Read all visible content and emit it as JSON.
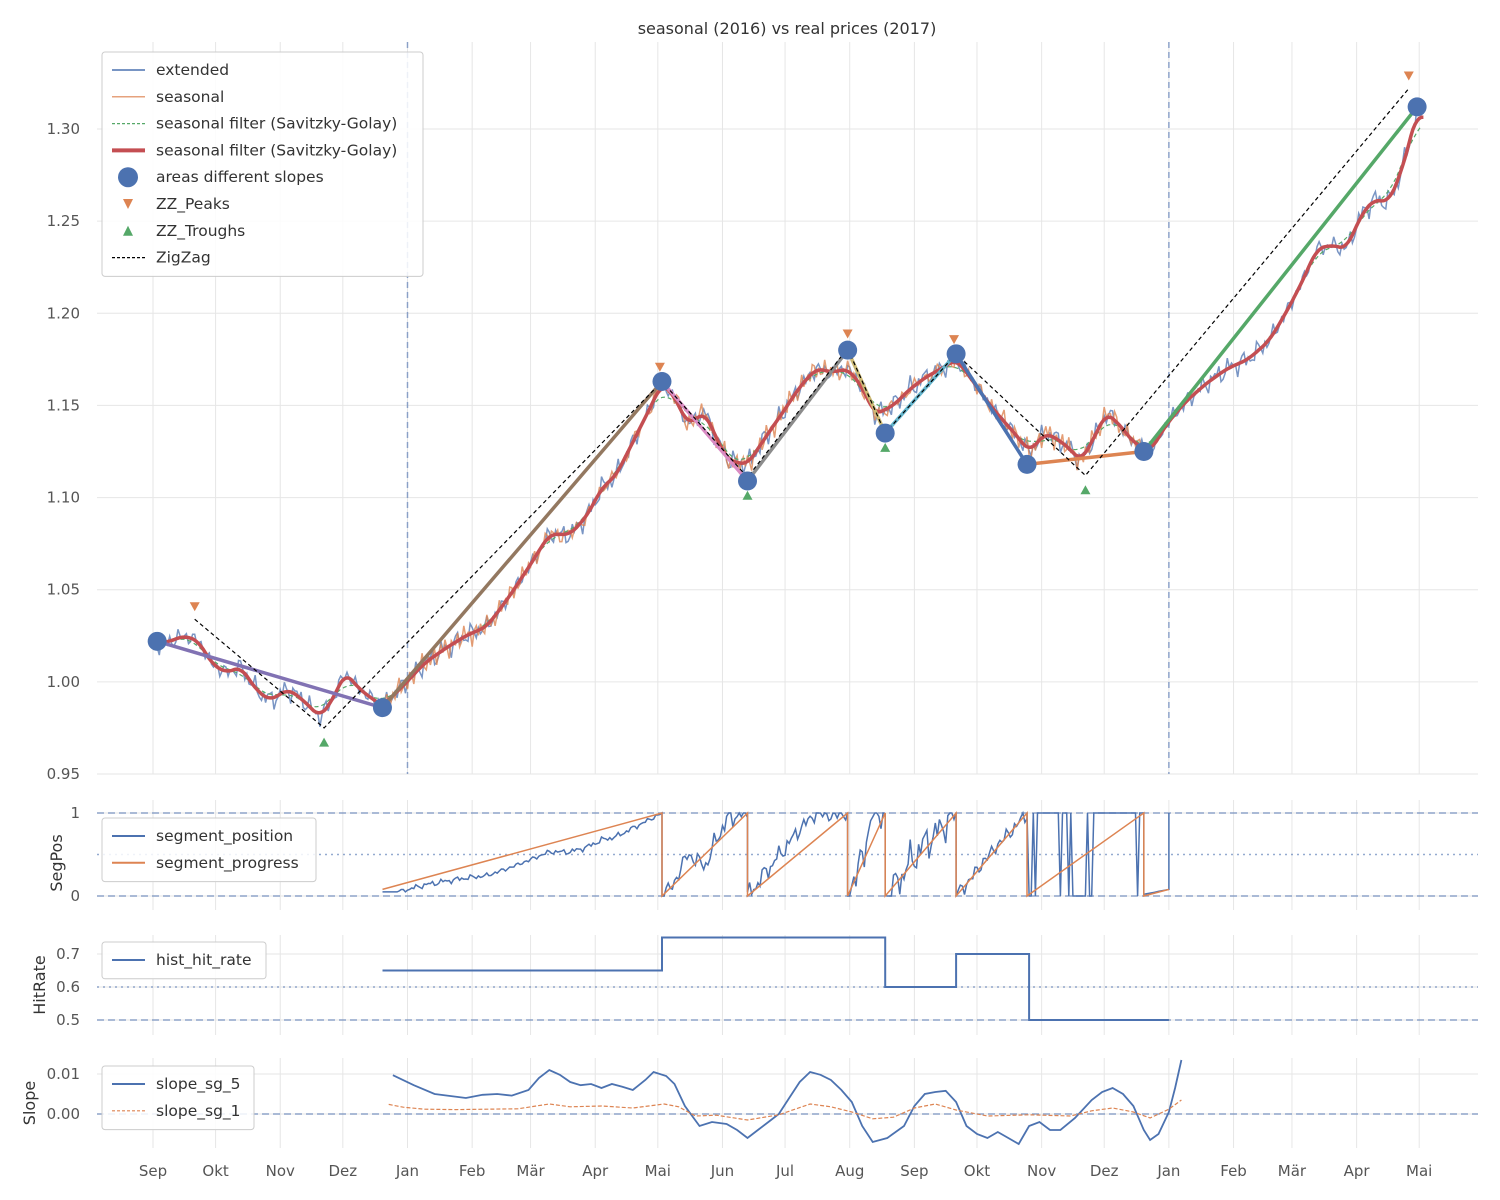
{
  "chart_data": [
    {
      "type": "line",
      "title": "seasonal (2016) vs real prices (2017)",
      "xlabel": "",
      "ylabel": "",
      "x_unit": "days since Sep 1 (2016)",
      "xlim": [
        -27,
        635
      ],
      "ylim": [
        0.95,
        1.347
      ],
      "yticks": [
        0.95,
        1.0,
        1.05,
        1.1,
        1.15,
        1.2,
        1.25,
        1.3
      ],
      "ytick_labels": [
        "0.95",
        "1.00",
        "1.05",
        "1.10",
        "1.15",
        "1.20",
        "1.25",
        "1.30"
      ],
      "vlines": [
        122,
        487
      ],
      "legend_position": "top-left",
      "legend": [
        "extended",
        "seasonal",
        "seasonal filter (Savitzky-Golay)",
        "seasonal filter (Savitzky-Golay)",
        "areas different slopes",
        "ZZ_Peaks",
        "ZZ_Troughs",
        "ZigZag"
      ],
      "smoothed": [
        [
          0,
          1.02
        ],
        [
          8,
          1.022
        ],
        [
          15,
          1.025
        ],
        [
          22,
          1.022
        ],
        [
          28,
          1.01
        ],
        [
          35,
          1.005
        ],
        [
          42,
          1.008
        ],
        [
          50,
          0.995
        ],
        [
          56,
          0.99
        ],
        [
          65,
          0.996
        ],
        [
          72,
          0.99
        ],
        [
          80,
          0.981
        ],
        [
          86,
          0.99
        ],
        [
          92,
          1.005
        ],
        [
          100,
          0.995
        ],
        [
          110,
          0.987
        ],
        [
          120,
          0.998
        ],
        [
          130,
          1.01
        ],
        [
          140,
          1.018
        ],
        [
          150,
          1.025
        ],
        [
          160,
          1.03
        ],
        [
          170,
          1.045
        ],
        [
          180,
          1.062
        ],
        [
          190,
          1.08
        ],
        [
          200,
          1.08
        ],
        [
          208,
          1.09
        ],
        [
          215,
          1.105
        ],
        [
          222,
          1.112
        ],
        [
          230,
          1.13
        ],
        [
          238,
          1.148
        ],
        [
          244,
          1.162
        ],
        [
          250,
          1.155
        ],
        [
          256,
          1.14
        ],
        [
          265,
          1.146
        ],
        [
          270,
          1.132
        ],
        [
          276,
          1.12
        ],
        [
          285,
          1.118
        ],
        [
          295,
          1.135
        ],
        [
          303,
          1.148
        ],
        [
          310,
          1.16
        ],
        [
          318,
          1.17
        ],
        [
          326,
          1.168
        ],
        [
          333,
          1.17
        ],
        [
          340,
          1.16
        ],
        [
          346,
          1.145
        ],
        [
          355,
          1.15
        ],
        [
          362,
          1.158
        ],
        [
          370,
          1.165
        ],
        [
          378,
          1.17
        ],
        [
          385,
          1.175
        ],
        [
          392,
          1.165
        ],
        [
          398,
          1.155
        ],
        [
          405,
          1.145
        ],
        [
          413,
          1.135
        ],
        [
          420,
          1.125
        ],
        [
          428,
          1.135
        ],
        [
          436,
          1.13
        ],
        [
          445,
          1.12
        ],
        [
          450,
          1.13
        ],
        [
          457,
          1.146
        ],
        [
          463,
          1.14
        ],
        [
          470,
          1.13
        ],
        [
          478,
          1.125
        ],
        [
          486,
          1.14
        ],
        [
          495,
          1.152
        ],
        [
          505,
          1.162
        ],
        [
          515,
          1.17
        ],
        [
          525,
          1.175
        ],
        [
          535,
          1.185
        ],
        [
          543,
          1.2
        ],
        [
          550,
          1.215
        ],
        [
          558,
          1.235
        ],
        [
          565,
          1.237
        ],
        [
          572,
          1.235
        ],
        [
          580,
          1.255
        ],
        [
          586,
          1.262
        ],
        [
          592,
          1.26
        ],
        [
          598,
          1.275
        ],
        [
          604,
          1.3
        ],
        [
          606,
          1.31
        ],
        [
          609,
          1.305
        ]
      ],
      "areas_different_slopes": [
        [
          2,
          1.022
        ],
        [
          110,
          0.986
        ],
        [
          244,
          1.163
        ],
        [
          285,
          1.109
        ],
        [
          333,
          1.18
        ],
        [
          351,
          1.135
        ],
        [
          385,
          1.178
        ],
        [
          419,
          1.118
        ],
        [
          475,
          1.125
        ],
        [
          606,
          1.312
        ]
      ],
      "segment_colors": [
        "#8172b3",
        "#937860",
        "#da8bc3",
        "#8c8c8c",
        "#ccb974",
        "#64b5cd",
        "#4c72b0",
        "#dd8452",
        "#55a868"
      ],
      "zz_peaks": [
        [
          20,
          1.041
        ],
        [
          243,
          1.171
        ],
        [
          333,
          1.189
        ],
        [
          384,
          1.186
        ],
        [
          602,
          1.329
        ]
      ],
      "zz_troughs": [
        [
          82,
          0.967
        ],
        [
          285,
          1.101
        ],
        [
          351,
          1.127
        ],
        [
          447,
          1.104
        ]
      ],
      "zigzag": [
        [
          20,
          1.034
        ],
        [
          82,
          0.975
        ],
        [
          244,
          1.163
        ],
        [
          285,
          1.111
        ],
        [
          333,
          1.181
        ],
        [
          351,
          1.135
        ],
        [
          385,
          1.178
        ],
        [
          447,
          1.112
        ],
        [
          602,
          1.322
        ]
      ],
      "seasonal_range": [
        110,
        476
      ],
      "colors": {
        "extended": "#4c72b0",
        "seasonal": "#dd8452",
        "sg_dashed": "#55a868",
        "sg_thick": "#c44e52",
        "areas": "#4c72b0",
        "peaks": "#dd8452",
        "troughs": "#55a868",
        "zigzag": "#000000"
      }
    },
    {
      "type": "line",
      "ylabel": "SegPos",
      "ylim": [
        -0.1,
        1.1
      ],
      "yticks": [
        0,
        1
      ],
      "ytick_labels": [
        "0",
        "1"
      ],
      "hlines_dashed": [
        0,
        1
      ],
      "hline_dotted": 0.5,
      "legend": [
        "segment_position",
        "segment_progress"
      ],
      "legend_position": "top-left",
      "segments": [
        [
          110,
          244
        ],
        [
          244,
          285
        ],
        [
          285,
          333
        ],
        [
          333,
          351
        ],
        [
          351,
          385
        ],
        [
          385,
          419
        ],
        [
          419,
          475
        ],
        [
          475,
          487
        ]
      ],
      "progress_start": 0.08,
      "colors": {
        "segment_position": "#4c72b0",
        "segment_progress": "#dd8452"
      }
    },
    {
      "type": "line",
      "ylabel": "HitRate",
      "ylim": [
        0.46,
        0.78
      ],
      "yticks": [
        0.5,
        0.6,
        0.7
      ],
      "ytick_labels": [
        "0.5",
        "0.6",
        "0.7"
      ],
      "hline_dashed": 0.5,
      "hline_dotted": 0.6,
      "legend": [
        "hist_hit_rate"
      ],
      "legend_position": "top-left",
      "steps": [
        [
          110,
          0.65
        ],
        [
          244,
          0.75
        ],
        [
          351,
          0.6
        ],
        [
          385,
          0.7
        ],
        [
          420,
          0.5
        ],
        [
          487,
          0.5
        ]
      ]
    },
    {
      "type": "line",
      "ylabel": "Slope",
      "ylim": [
        -0.0085,
        0.014
      ],
      "yticks": [
        0.0,
        0.01
      ],
      "ytick_labels": [
        "0.00",
        "0.01"
      ],
      "hline_dashed": 0,
      "legend": [
        "slope_sg_5",
        "slope_sg_1"
      ],
      "legend_position": "top-left",
      "slope_sg_5": [
        [
          115,
          0.0097
        ],
        [
          125,
          0.0072
        ],
        [
          135,
          0.005
        ],
        [
          150,
          0.004
        ],
        [
          158,
          0.0048
        ],
        [
          165,
          0.005
        ],
        [
          172,
          0.0046
        ],
        [
          180,
          0.006
        ],
        [
          185,
          0.009
        ],
        [
          190,
          0.011
        ],
        [
          195,
          0.0098
        ],
        [
          200,
          0.008
        ],
        [
          205,
          0.0072
        ],
        [
          210,
          0.0075
        ],
        [
          215,
          0.0065
        ],
        [
          220,
          0.0075
        ],
        [
          225,
          0.0068
        ],
        [
          230,
          0.006
        ],
        [
          236,
          0.0085
        ],
        [
          240,
          0.0105
        ],
        [
          246,
          0.0095
        ],
        [
          250,
          0.0075
        ],
        [
          255,
          0.002
        ],
        [
          262,
          -0.003
        ],
        [
          268,
          -0.002
        ],
        [
          275,
          -0.0025
        ],
        [
          280,
          -0.004
        ],
        [
          285,
          -0.006
        ],
        [
          290,
          -0.004
        ],
        [
          295,
          -0.002
        ],
        [
          300,
          0.0
        ],
        [
          305,
          0.004
        ],
        [
          310,
          0.008
        ],
        [
          315,
          0.0105
        ],
        [
          320,
          0.0098
        ],
        [
          325,
          0.0085
        ],
        [
          330,
          0.006
        ],
        [
          335,
          0.003
        ],
        [
          340,
          -0.003
        ],
        [
          345,
          -0.007
        ],
        [
          352,
          -0.006
        ],
        [
          360,
          -0.003
        ],
        [
          365,
          0.002
        ],
        [
          370,
          0.005
        ],
        [
          375,
          0.0055
        ],
        [
          380,
          0.0058
        ],
        [
          385,
          0.003
        ],
        [
          390,
          -0.003
        ],
        [
          395,
          -0.005
        ],
        [
          400,
          -0.006
        ],
        [
          405,
          -0.0045
        ],
        [
          410,
          -0.006
        ],
        [
          415,
          -0.0075
        ],
        [
          420,
          -0.003
        ],
        [
          425,
          -0.002
        ],
        [
          430,
          -0.004
        ],
        [
          435,
          -0.004
        ],
        [
          442,
          -0.001
        ],
        [
          450,
          0.0035
        ],
        [
          455,
          0.0055
        ],
        [
          460,
          0.0065
        ],
        [
          465,
          0.005
        ],
        [
          470,
          0.002
        ],
        [
          475,
          -0.004
        ],
        [
          478,
          -0.0065
        ],
        [
          482,
          -0.005
        ],
        [
          487,
          0.0005
        ],
        [
          490,
          0.0065
        ],
        [
          493,
          0.0135
        ]
      ],
      "slope_sg_1": [
        [
          113,
          0.0024
        ],
        [
          120,
          0.0017
        ],
        [
          130,
          0.0012
        ],
        [
          145,
          0.0011
        ],
        [
          160,
          0.0012
        ],
        [
          175,
          0.0013
        ],
        [
          190,
          0.0025
        ],
        [
          200,
          0.0018
        ],
        [
          215,
          0.002
        ],
        [
          230,
          0.0015
        ],
        [
          245,
          0.0025
        ],
        [
          252,
          0.0018
        ],
        [
          260,
          -0.0005
        ],
        [
          270,
          -0.0003
        ],
        [
          285,
          -0.0015
        ],
        [
          300,
          -0.0002
        ],
        [
          315,
          0.0025
        ],
        [
          325,
          0.0018
        ],
        [
          335,
          0.0005
        ],
        [
          345,
          -0.0012
        ],
        [
          355,
          -0.0008
        ],
        [
          365,
          0.0015
        ],
        [
          375,
          0.0025
        ],
        [
          385,
          0.001
        ],
        [
          400,
          -0.0005
        ],
        [
          420,
          -0.0002
        ],
        [
          440,
          -0.0005
        ],
        [
          450,
          0.0008
        ],
        [
          460,
          0.0015
        ],
        [
          470,
          0.0005
        ],
        [
          478,
          -0.001
        ],
        [
          487,
          0.0012
        ],
        [
          493,
          0.0035
        ]
      ],
      "colors": {
        "slope_sg_5": "#4c72b0",
        "slope_sg_1": "#dd8452"
      }
    }
  ],
  "xaxis": {
    "ticks": [
      0,
      30,
      61,
      91,
      122,
      153,
      181,
      212,
      242,
      273,
      303,
      334,
      365,
      395,
      426,
      456,
      487,
      518,
      546,
      577,
      607
    ],
    "labels": [
      "Sep",
      "Okt",
      "Nov",
      "Dez",
      "Jan",
      "Feb",
      "Mär",
      "Apr",
      "Mai",
      "Jun",
      "Jul",
      "Aug",
      "Sep",
      "Okt",
      "Nov",
      "Dez",
      "Jan",
      "Feb",
      "Mär",
      "Apr",
      "Mai"
    ]
  }
}
